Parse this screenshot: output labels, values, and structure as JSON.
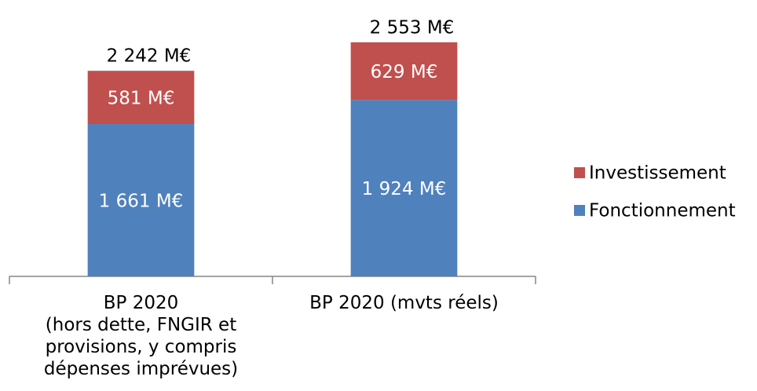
{
  "chart_data": {
    "type": "stacked-bar",
    "categories": [
      "BP 2020\n(hors dette, FNGIR et\nprovisions, y compris\ndépenses imprévues)",
      "BP 2020 (mvts réels)"
    ],
    "series": [
      {
        "name": "Fonctionnement",
        "color": "#4f81bd",
        "values": [
          1661,
          1924
        ],
        "value_labels": [
          "1 661 M€",
          "1 924 M€"
        ]
      },
      {
        "name": "Investissement",
        "color": "#c0504d",
        "values": [
          581,
          629
        ],
        "value_labels": [
          "581 M€",
          "629 M€"
        ]
      }
    ],
    "totals": {
      "values": [
        2242,
        2553
      ],
      "value_labels": [
        "2 242 M€",
        "2 553 M€"
      ]
    },
    "ylim": [
      0,
      2800
    ],
    "legend": "right"
  }
}
